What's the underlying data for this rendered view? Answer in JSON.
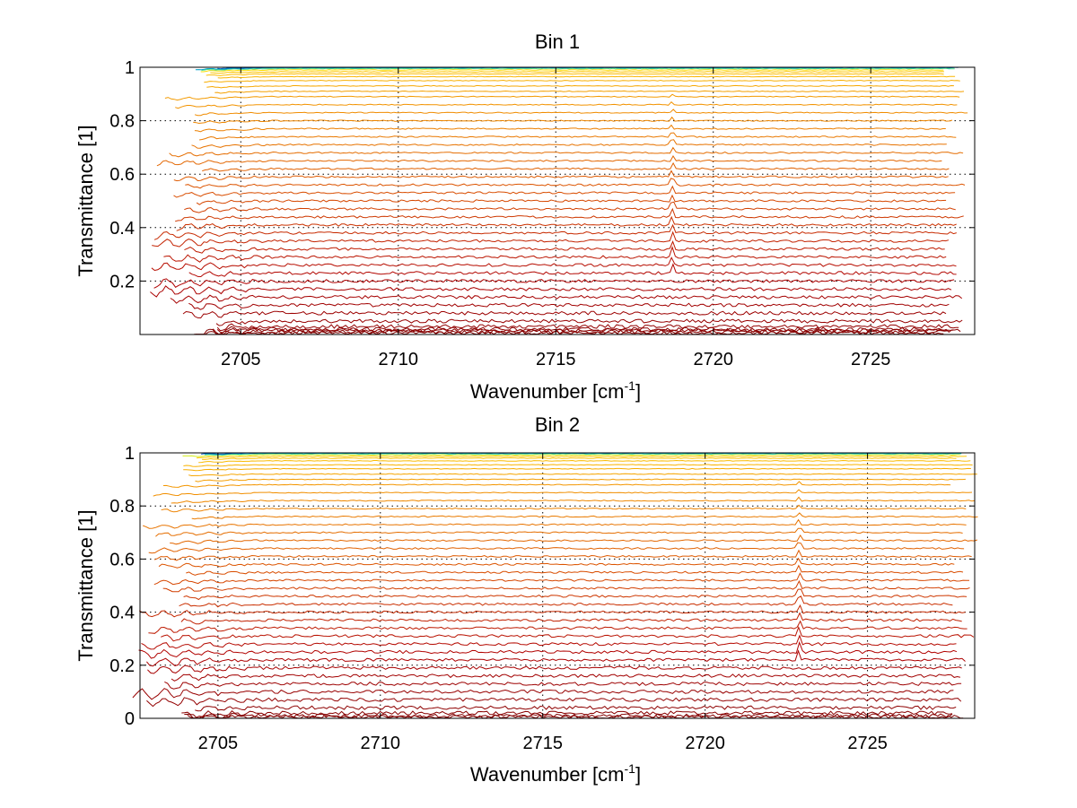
{
  "chart_data": [
    {
      "type": "line",
      "title": "Bin 1",
      "xlabel": "Wavenumber [cm",
      "xlabel_sup": "-1",
      "xlabel_close": "]",
      "ylabel": "Transmittance [1]",
      "xlim": [
        2701.8,
        2728.3
      ],
      "ylim": [
        0,
        1
      ],
      "xticks": [
        2705,
        2710,
        2715,
        2720,
        2725
      ],
      "xtick_labels": [
        "2705",
        "2710",
        "2715",
        "2720",
        "2725"
      ],
      "yticks": [
        0.2,
        0.4,
        0.6,
        0.8,
        1
      ],
      "ytick_labels": [
        "0.2",
        "0.4",
        "0.6",
        "0.8",
        "1"
      ],
      "grid": true,
      "colormap": [
        "#7f0000",
        "#b00000",
        "#d84a00",
        "#f08a00",
        "#ffd000",
        "#f6f200",
        "#00d8d0",
        "#0060c0"
      ],
      "series_levels": [
        0.005,
        0.01,
        0.015,
        0.02,
        0.03,
        0.05,
        0.08,
        0.11,
        0.14,
        0.17,
        0.2,
        0.23,
        0.26,
        0.29,
        0.32,
        0.35,
        0.38,
        0.41,
        0.44,
        0.47,
        0.5,
        0.53,
        0.56,
        0.59,
        0.62,
        0.65,
        0.68,
        0.71,
        0.74,
        0.77,
        0.8,
        0.83,
        0.86,
        0.89,
        0.91,
        0.93,
        0.95,
        0.965,
        0.975,
        0.983,
        0.99,
        0.995,
        0.998,
        1.0
      ],
      "x_range": [
        2703.5,
        2727.5
      ],
      "spike_x": 2718.7
    },
    {
      "type": "line",
      "title": "Bin 2",
      "xlabel": "Wavenumber [cm",
      "xlabel_sup": "-1",
      "xlabel_close": "]",
      "ylabel": "Transmittance [1]",
      "xlim": [
        2702.6,
        2728.3
      ],
      "ylim": [
        0,
        1
      ],
      "xticks": [
        2705,
        2710,
        2715,
        2720,
        2725
      ],
      "xtick_labels": [
        "2705",
        "2710",
        "2715",
        "2720",
        "2725"
      ],
      "yticks": [
        0,
        0.2,
        0.4,
        0.6,
        0.8,
        1
      ],
      "ytick_labels": [
        "0",
        "0.2",
        "0.4",
        "0.6",
        "0.8",
        "1"
      ],
      "grid": true,
      "colormap": [
        "#7f0000",
        "#b00000",
        "#d84a00",
        "#f08a00",
        "#ffd000",
        "#f6f200",
        "#00d8d0",
        "#0060c0"
      ],
      "series_levels": [
        0.005,
        0.01,
        0.02,
        0.04,
        0.07,
        0.1,
        0.13,
        0.16,
        0.19,
        0.22,
        0.25,
        0.28,
        0.31,
        0.34,
        0.37,
        0.4,
        0.43,
        0.46,
        0.49,
        0.52,
        0.55,
        0.58,
        0.61,
        0.64,
        0.67,
        0.7,
        0.73,
        0.76,
        0.79,
        0.82,
        0.85,
        0.88,
        0.9,
        0.92,
        0.94,
        0.955,
        0.97,
        0.98,
        0.987,
        0.993,
        0.997,
        1.0
      ],
      "x_range": [
        2703.8,
        2727.8
      ],
      "spike_x": 2722.9
    }
  ]
}
